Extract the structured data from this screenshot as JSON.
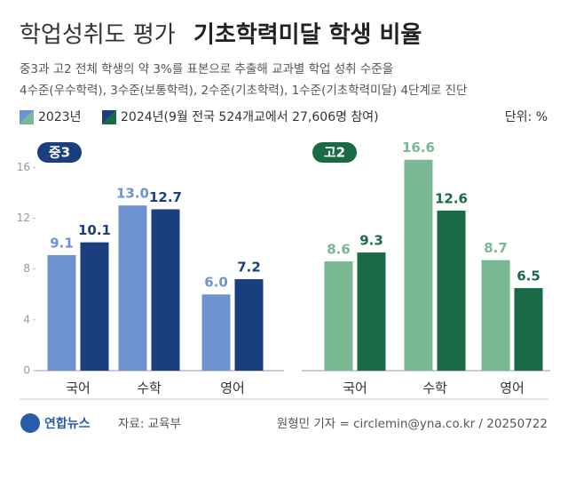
{
  "title_light": "학업성취도 평가",
  "title_bold": "기초학력미달 학생 비율",
  "subtitle": [
    "중3과 고2 전체 학생의 약 3%를 표본으로 추출해 교과별 학업 성취 수준을",
    "4수준(우수학력), 3수준(보통학력), 2수준(기초학력), 1수준(기초학력미달) 4단계로 진단"
  ],
  "unit": "단위: %",
  "logo": "연합뉴스",
  "source": "자료: 교육부",
  "credit": "원형민 기자 = circlemin@yna.co.kr / 20250722",
  "chart_data": [
    {
      "type": "bar",
      "title": "중3",
      "categories": [
        "국어",
        "수학",
        "영어"
      ],
      "series": [
        {
          "name": "2023년",
          "color": "#6d93d2",
          "values": [
            9.1,
            13.0,
            6.0
          ],
          "value_labels": [
            "9.1",
            "13.0",
            "6.0"
          ]
        },
        {
          "name": "2024년(9월 전국 524개교에서 27,606명 참여)",
          "color": "#1b3f7e",
          "values": [
            10.1,
            12.7,
            7.2
          ],
          "value_labels": [
            "10.1",
            "12.7",
            "7.2"
          ]
        }
      ],
      "ylim": [
        0,
        17
      ],
      "yticks": [
        0,
        4,
        8,
        12,
        16
      ]
    },
    {
      "type": "bar",
      "title": "고2",
      "categories": [
        "국어",
        "수학",
        "영어"
      ],
      "series": [
        {
          "name": "2023년",
          "color": "#79b893",
          "values": [
            8.6,
            16.6,
            8.7
          ],
          "value_labels": [
            "8.6",
            "16.6",
            "8.7"
          ]
        },
        {
          "name": "2024년",
          "color": "#196b45",
          "values": [
            9.3,
            12.6,
            6.5
          ],
          "value_labels": [
            "9.3",
            "12.6",
            "6.5"
          ]
        }
      ],
      "ylim": [
        0,
        17
      ]
    }
  ]
}
